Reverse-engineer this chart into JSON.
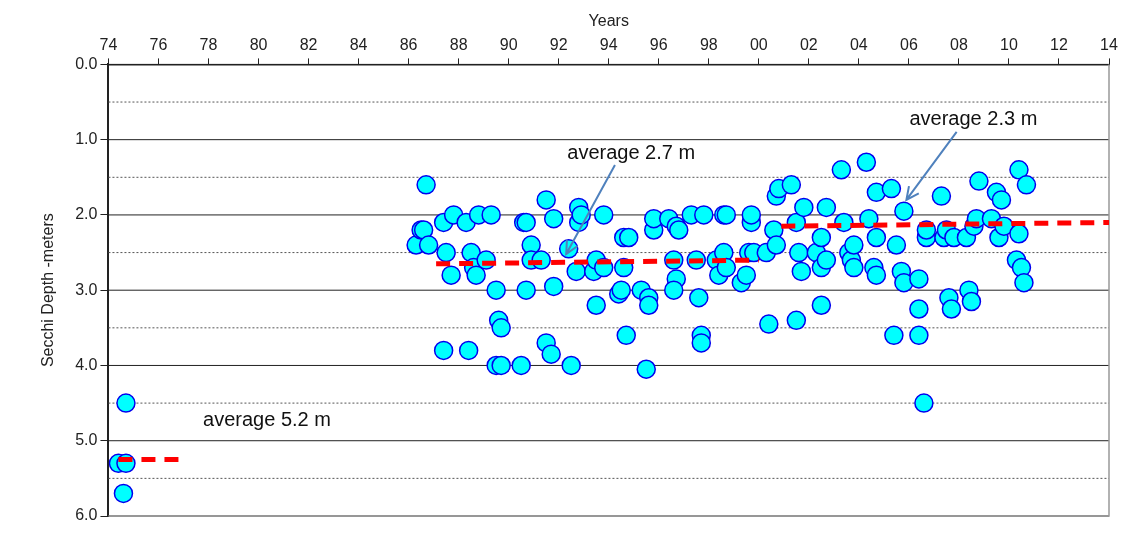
{
  "chart_data": {
    "type": "scatter",
    "xlabel": "Years",
    "ylabel": "Secchi Depth -meters",
    "xlim": [
      1974,
      2014
    ],
    "xticks": [
      {
        "value": 1974,
        "label": "74"
      },
      {
        "value": 1976,
        "label": "76"
      },
      {
        "value": 1978,
        "label": "78"
      },
      {
        "value": 1980,
        "label": "80"
      },
      {
        "value": 1982,
        "label": "82"
      },
      {
        "value": 1984,
        "label": "84"
      },
      {
        "value": 1986,
        "label": "86"
      },
      {
        "value": 1988,
        "label": "88"
      },
      {
        "value": 1990,
        "label": "90"
      },
      {
        "value": 1992,
        "label": "92"
      },
      {
        "value": 1994,
        "label": "94"
      },
      {
        "value": 1996,
        "label": "96"
      },
      {
        "value": 1998,
        "label": "98"
      },
      {
        "value": 2000,
        "label": "00"
      },
      {
        "value": 2002,
        "label": "02"
      },
      {
        "value": 2004,
        "label": "04"
      },
      {
        "value": 2006,
        "label": "06"
      },
      {
        "value": 2008,
        "label": "08"
      },
      {
        "value": 2010,
        "label": "10"
      },
      {
        "value": 2012,
        "label": "12"
      },
      {
        "value": 2014,
        "label": "14"
      }
    ],
    "ylim": [
      6,
      0
    ],
    "yticks": [
      {
        "value": 0,
        "label": "0.0"
      },
      {
        "value": 0.5,
        "label": null
      },
      {
        "value": 1,
        "label": "1.0"
      },
      {
        "value": 1.5,
        "label": null
      },
      {
        "value": 2,
        "label": "2.0"
      },
      {
        "value": 2.5,
        "label": null
      },
      {
        "value": 3,
        "label": "3.0"
      },
      {
        "value": 3.5,
        "label": null
      },
      {
        "value": 4,
        "label": "4.0"
      },
      {
        "value": 4.5,
        "label": null
      },
      {
        "value": 5,
        "label": "5.0"
      },
      {
        "value": 5.5,
        "label": null
      },
      {
        "value": 6,
        "label": "6.0"
      }
    ],
    "grid": "y",
    "legend": false,
    "marker": "circle",
    "series": [
      {
        "color": "#00ffff",
        "x": [
          1974.4,
          1974.7,
          1974.7,
          1974.6,
          1986.7,
          1986.3,
          1986.5,
          1986.6,
          1986.8,
          1987.4,
          1987.5,
          1987.7,
          1987.4,
          1987.8,
          1988.3,
          1988.5,
          1988.6,
          1988.7,
          1988.4,
          1988.8,
          1989.3,
          1989.1,
          1989.5,
          1989.6,
          1989.7,
          1989.5,
          1989.7,
          1990.5,
          1990.6,
          1990.7,
          1990.7,
          1990.9,
          1990.9,
          1991.3,
          1991.5,
          1991.5,
          1991.7,
          1991.8,
          1991.8,
          1992.4,
          1992.5,
          1992.7,
          1992.8,
          1992.8,
          1992.9,
          1993.4,
          1993.5,
          1993.5,
          1993.8,
          1993.8,
          1994.4,
          1994.5,
          1994.6,
          1994.6,
          1994.8,
          1994.7,
          1995.3,
          1995.6,
          1995.6,
          1995.5,
          1995.8,
          1995.8,
          1996.4,
          1996.6,
          1996.7,
          1996.8,
          1996.7,
          1996.6,
          1997.3,
          1997.5,
          1997.6,
          1997.7,
          1997.7,
          1997.8,
          1998.3,
          1998.4,
          1998.6,
          1998.7,
          1998.6,
          1998.7,
          1999.3,
          1999.5,
          1999.6,
          1999.8,
          1999.7,
          1999.7,
          2000.3,
          2000.4,
          2000.6,
          2000.7,
          2000.7,
          2000.8,
          2001.3,
          2001.5,
          2001.6,
          2001.5,
          2001.7,
          2001.8,
          2002.3,
          2002.5,
          2002.5,
          2002.5,
          2002.7,
          2002.7,
          2003.3,
          2003.4,
          2003.6,
          2003.7,
          2003.8,
          2003.8,
          2004.3,
          2004.4,
          2004.6,
          2004.7,
          2004.7,
          2004.7,
          2005.3,
          2005.4,
          2005.5,
          2005.7,
          2005.8,
          2005.8,
          2006.4,
          2006.4,
          2006.4,
          2006.6,
          2006.7,
          2006.7,
          2007.3,
          2007.4,
          2007.5,
          2007.6,
          2007.7,
          2007.8,
          2008.3,
          2008.4,
          2008.5,
          2008.6,
          2008.7,
          2008.8,
          2009.3,
          2009.5,
          2009.6,
          2009.7,
          2009.8,
          2010.3,
          2010.4,
          2010.5,
          2010.6,
          2010.7,
          2010.4
        ],
        "values": [
          5.3,
          5.3,
          4.5,
          5.7,
          1.6,
          2.4,
          2.2,
          2.2,
          2.4,
          2.1,
          2.5,
          2.8,
          3.8,
          2.0,
          2.1,
          2.5,
          2.7,
          2.8,
          3.8,
          2.0,
          2.0,
          2.6,
          3.0,
          3.4,
          3.5,
          4.0,
          4.0,
          4.0,
          2.1,
          2.1,
          3.0,
          2.4,
          2.6,
          2.6,
          1.8,
          3.7,
          3.85,
          2.05,
          2.95,
          2.45,
          4.0,
          2.75,
          1.9,
          2.1,
          2.0,
          2.75,
          2.6,
          3.2,
          2.0,
          2.7,
          3.05,
          3.0,
          2.7,
          2.3,
          2.3,
          3.6,
          3.0,
          3.1,
          3.2,
          4.05,
          2.2,
          2.05,
          2.05,
          2.6,
          2.15,
          2.2,
          2.85,
          3.0,
          2.0,
          2.6,
          3.1,
          3.6,
          3.7,
          2.0,
          2.6,
          2.8,
          2.5,
          2.7,
          2.0,
          2.0,
          2.9,
          2.8,
          2.5,
          2.5,
          2.1,
          2.0,
          2.5,
          3.45,
          2.2,
          2.4,
          1.75,
          1.65,
          1.6,
          2.1,
          2.5,
          3.4,
          2.75,
          1.9,
          2.5,
          2.7,
          2.3,
          3.2,
          2.6,
          1.9,
          1.4,
          2.1,
          2.5,
          2.6,
          2.4,
          2.7,
          1.3,
          2.05,
          2.7,
          2.3,
          1.7,
          2.8,
          1.65,
          3.6,
          2.4,
          2.75,
          2.9,
          1.95,
          2.85,
          3.25,
          3.6,
          4.5,
          2.3,
          2.2,
          1.75,
          2.3,
          2.2,
          3.1,
          3.25,
          2.3,
          2.3,
          3.0,
          3.15,
          2.15,
          2.05,
          1.55,
          2.05,
          1.7,
          2.3,
          1.8,
          2.15,
          2.6,
          1.4,
          2.7,
          2.9,
          1.6,
          2.25
        ]
      },
      {
        "type": "line",
        "color": "#ff0000",
        "line_style": "dashed",
        "marker": "none",
        "x": [
          1974.4,
          1976.9
        ],
        "values": [
          5.25,
          5.25
        ]
      },
      {
        "type": "line",
        "color": "#ff0000",
        "line_style": "dashed",
        "marker": "none",
        "x": [
          1987.1,
          2000.0
        ],
        "values": [
          2.65,
          2.6
        ]
      },
      {
        "type": "line",
        "color": "#ff0000",
        "line_style": "dashed",
        "marker": "none",
        "x": [
          2000.9,
          2014
        ],
        "values": [
          2.15,
          2.1
        ]
      }
    ],
    "annotations": [
      {
        "text": "average 5.2 m",
        "x": 1976.9,
        "y": 5.25
      },
      {
        "text": "average 2.7 m",
        "x": 1992.3,
        "y": 2.52
      },
      {
        "text": "average 2.3 m",
        "x": 2005.9,
        "y": 1.8
      }
    ]
  }
}
